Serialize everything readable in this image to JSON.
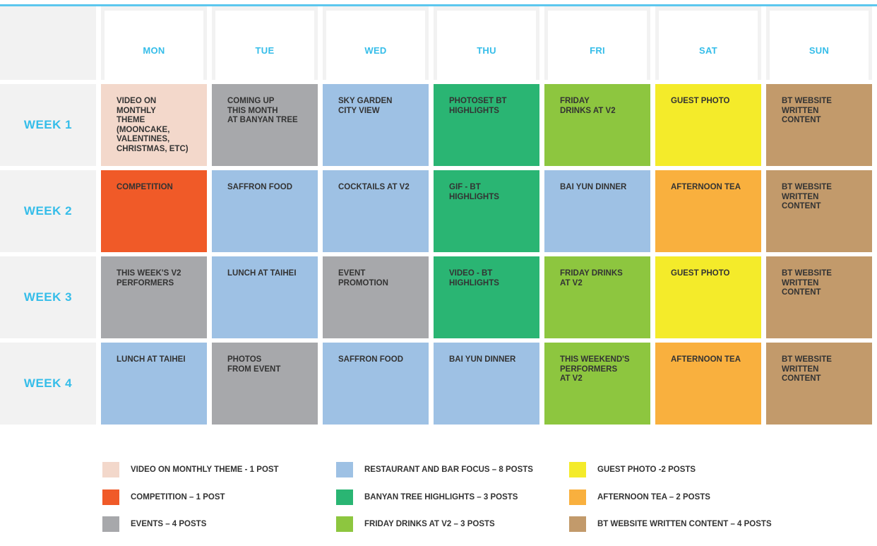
{
  "colors": {
    "accent": "#35bde9",
    "peach": "#f3d8cb",
    "orange_red": "#f05a28",
    "gray": "#a7a8ab",
    "blue": "#9ec1e4",
    "green": "#2ab573",
    "lime": "#8dc63f",
    "yellow": "#f4eb2a",
    "orange": "#f9b03e",
    "tan": "#c29a6b"
  },
  "days": [
    "MON",
    "TUE",
    "WED",
    "THU",
    "FRI",
    "SAT",
    "SUN"
  ],
  "weeks": [
    {
      "label": "WEEK 1",
      "cells": [
        {
          "text": "VIDEO ON\nMONTHLY\nTHEME\n(MOONCAKE,\nVALENTINES,\nCHRISTMAS, ETC)",
          "color": "peach"
        },
        {
          "text": "COMING UP\nTHIS MONTH\nAT BANYAN TREE",
          "color": "gray"
        },
        {
          "text": "SKY GARDEN\nCITY VIEW",
          "color": "blue"
        },
        {
          "text": "PHOTOSET BT\nHIGHLIGHTS",
          "color": "green"
        },
        {
          "text": "FRIDAY\nDRINKS AT V2",
          "color": "lime"
        },
        {
          "text": "GUEST PHOTO",
          "color": "yellow"
        },
        {
          "text": "BT WEBSITE\nWRITTEN\nCONTENT",
          "color": "tan"
        }
      ]
    },
    {
      "label": "WEEK 2",
      "cells": [
        {
          "text": "COMPETITION",
          "color": "orange_red"
        },
        {
          "text": "SAFFRON FOOD",
          "color": "blue"
        },
        {
          "text": "COCKTAILS AT V2",
          "color": "blue"
        },
        {
          "text": "GIF - BT\nHIGHLIGHTS",
          "color": "green"
        },
        {
          "text": "BAI YUN DINNER",
          "color": "blue"
        },
        {
          "text": "AFTERNOON TEA",
          "color": "orange"
        },
        {
          "text": "BT WEBSITE\nWRITTEN\nCONTENT",
          "color": "tan"
        }
      ]
    },
    {
      "label": "WEEK 3",
      "cells": [
        {
          "text": "THIS WEEK'S V2\nPERFORMERS",
          "color": "gray"
        },
        {
          "text": "LUNCH AT TAIHEI",
          "color": "blue"
        },
        {
          "text": "EVENT\nPROMOTION",
          "color": "gray"
        },
        {
          "text": "VIDEO - BT\nHIGHLIGHTS",
          "color": "green"
        },
        {
          "text": "FRIDAY DRINKS\nAT V2",
          "color": "lime"
        },
        {
          "text": "GUEST PHOTO",
          "color": "yellow"
        },
        {
          "text": "BT WEBSITE\nWRITTEN\nCONTENT",
          "color": "tan"
        }
      ]
    },
    {
      "label": "WEEK 4",
      "cells": [
        {
          "text": "LUNCH AT TAIHEI",
          "color": "blue"
        },
        {
          "text": "PHOTOS\nFROM EVENT",
          "color": "gray"
        },
        {
          "text": "SAFFRON FOOD",
          "color": "blue"
        },
        {
          "text": "BAI YUN DINNER",
          "color": "blue"
        },
        {
          "text": "THIS WEEKEND'S\nPERFORMERS\nAT V2",
          "color": "lime"
        },
        {
          "text": "AFTERNOON TEA",
          "color": "orange"
        },
        {
          "text": "BT WEBSITE\nWRITTEN\nCONTENT",
          "color": "tan"
        }
      ]
    }
  ],
  "legend": [
    {
      "label": "VIDEO ON MONTHLY THEME  - 1 POST",
      "color": "peach"
    },
    {
      "label": "COMPETITION – 1 POST",
      "color": "orange_red"
    },
    {
      "label": "EVENTS – 4 POSTS",
      "color": "gray"
    },
    {
      "label": "RESTAURANT AND BAR FOCUS – 8 POSTS",
      "color": "blue"
    },
    {
      "label": "BANYAN TREE HIGHLIGHTS – 3 POSTS",
      "color": "green"
    },
    {
      "label": "FRIDAY DRINKS AT V2 – 3 POSTS",
      "color": "lime"
    },
    {
      "label": "GUEST PHOTO -2 POSTS",
      "color": "yellow"
    },
    {
      "label": "AFTERNOON TEA – 2 POSTS",
      "color": "orange"
    },
    {
      "label": "BT WEBSITE WRITTEN CONTENT – 4 POSTS",
      "color": "tan"
    }
  ]
}
